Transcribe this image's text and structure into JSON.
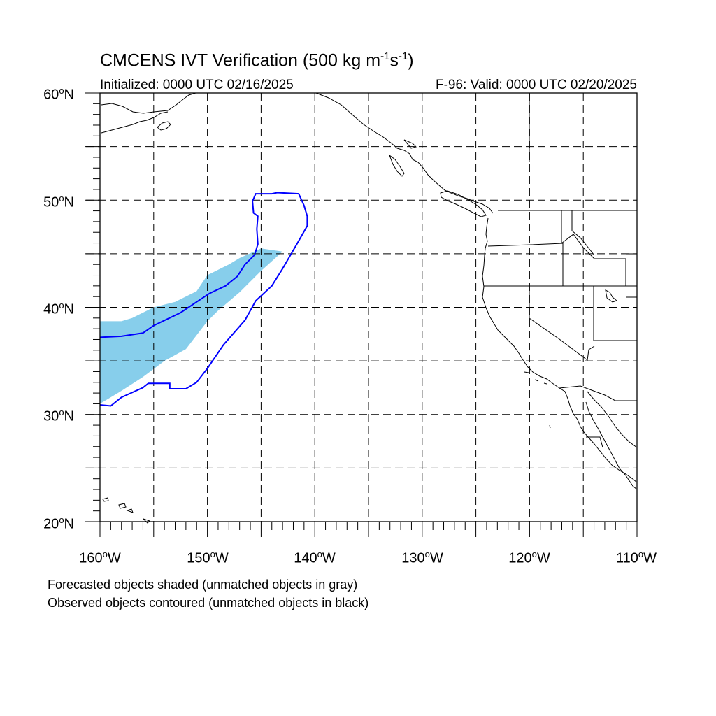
{
  "title": {
    "main": "CMCENS IVT Verification (500 kg m",
    "sup1": "-1",
    "mid": "s",
    "sup2": "-1",
    "end": ")"
  },
  "init_label": "Initialized: 0000 UTC 02/16/2025",
  "valid_label": "F-96: Valid: 0000 UTC 02/20/2025",
  "lat_labels": [
    "60",
    "50",
    "40",
    "30",
    "20"
  ],
  "lon_labels": [
    "160",
    "150",
    "140",
    "130",
    "120",
    "110"
  ],
  "lat_suffix": "N",
  "lon_suffix": "W",
  "degree": "o",
  "notes": [
    "Forecasted objects shaded (unmatched objects in gray)",
    "Observed objects contoured (unmatched objects in black)"
  ],
  "colors": {
    "forecast_fill": "#87ceeb",
    "observed_contour": "#0000ff",
    "coast": "#000000",
    "grid": "#000000"
  },
  "map_extent": {
    "lon_min": -160,
    "lon_max": -110,
    "lat_min": 20,
    "lat_max": 60
  },
  "forecast_object": {
    "top": [
      [
        -160,
        38.7
      ],
      [
        -158,
        38.7
      ],
      [
        -157,
        39
      ],
      [
        -155,
        40
      ],
      [
        -153,
        40.5
      ],
      [
        -151,
        41.5
      ],
      [
        -150,
        43
      ],
      [
        -148,
        44
      ],
      [
        -147,
        44.6
      ],
      [
        -145,
        45.5
      ],
      [
        -143,
        45.2
      ]
    ],
    "bottom": [
      [
        -143,
        45.2
      ],
      [
        -145,
        43.4
      ],
      [
        -147,
        41.4
      ],
      [
        -149,
        39.7
      ],
      [
        -150,
        38.7
      ],
      [
        -152,
        36.1
      ],
      [
        -154,
        35
      ],
      [
        -156,
        33.5
      ],
      [
        -158,
        32.2
      ],
      [
        -160,
        31
      ]
    ]
  },
  "observed_object": [
    [
      -160,
      30.9
    ],
    [
      -159,
      30.8
    ],
    [
      -158,
      31.6
    ],
    [
      -156,
      32.5
    ],
    [
      -155.5,
      32.9
    ],
    [
      -153.5,
      32.9
    ],
    [
      -153.5,
      32.4
    ],
    [
      -152,
      32.4
    ],
    [
      -151,
      33
    ],
    [
      -150,
      34.3
    ],
    [
      -148.5,
      36.5
    ],
    [
      -146.5,
      38.8
    ],
    [
      -145.5,
      40.6
    ],
    [
      -144,
      42
    ],
    [
      -143,
      43.6
    ],
    [
      -141.5,
      46.2
    ],
    [
      -140.7,
      47.6
    ],
    [
      -140.7,
      48.5
    ],
    [
      -141,
      49.5
    ],
    [
      -141.5,
      50.6
    ],
    [
      -143.5,
      50.7
    ],
    [
      -144,
      50.6
    ],
    [
      -145.5,
      50.6
    ],
    [
      -145.8,
      49.9
    ],
    [
      -145.7,
      48.8
    ],
    [
      -145.3,
      48.5
    ],
    [
      -145.4,
      47.3
    ],
    [
      -145.3,
      45.9
    ],
    [
      -145.6,
      44.9
    ],
    [
      -146.5,
      44
    ],
    [
      -147.2,
      42.9
    ],
    [
      -148.3,
      42
    ],
    [
      -149.8,
      41.3
    ],
    [
      -151,
      40.5
    ],
    [
      -152.5,
      39.5
    ],
    [
      -155,
      38.3
    ],
    [
      -156,
      37.6
    ],
    [
      -158,
      37.3
    ],
    [
      -160,
      37.2
    ]
  ]
}
